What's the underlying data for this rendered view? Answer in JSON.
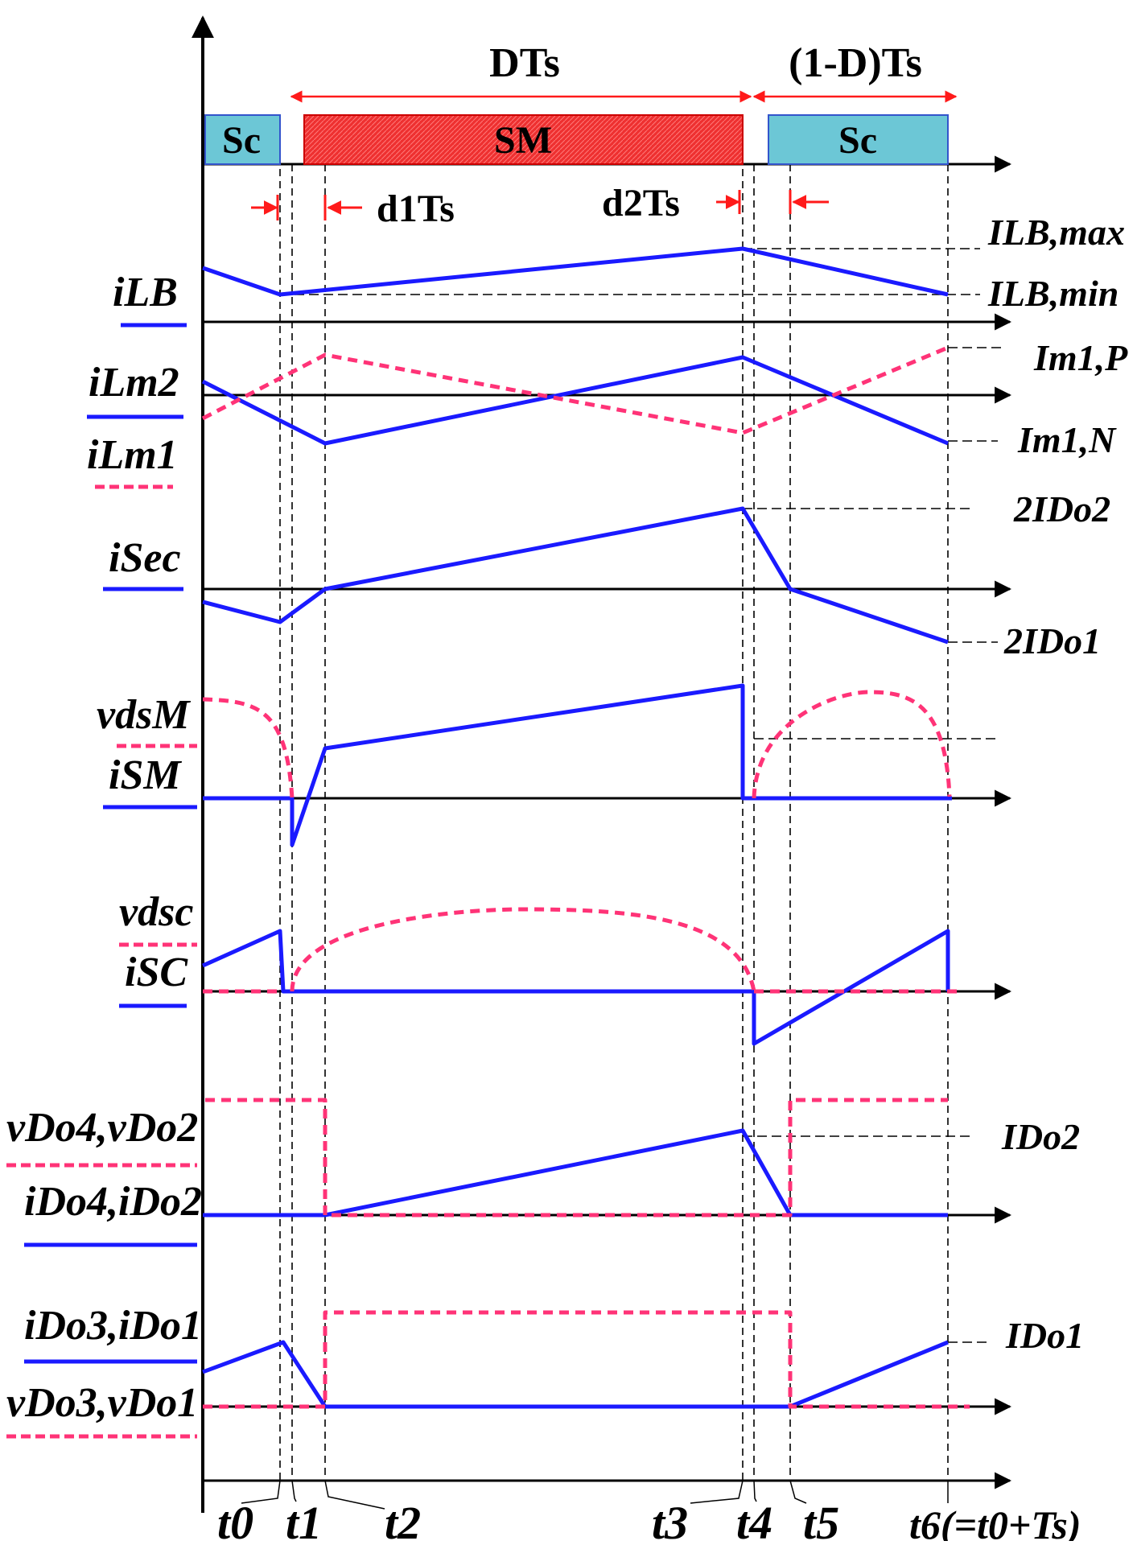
{
  "colors": {
    "blue": "#1a1aff",
    "pink": "#ff3377",
    "red": "#ff1a1a",
    "cyan_fill": "#6cc7d6",
    "red_fill": "#ee3030",
    "black": "#000000"
  },
  "gate_bar": {
    "dts": "DTs",
    "one_minus_d_ts": "(1-D)Ts",
    "sc_left": "Sc",
    "sm": "SM",
    "sc_right": "Sc"
  },
  "deadtimes": {
    "d1ts": "d1Ts",
    "d2ts": "d2Ts"
  },
  "waveform_labels": {
    "ilb": "iLB",
    "ilm2": "iLm2",
    "ilm1": "iLm1",
    "isec": "iSec",
    "vdsm": "vdsM",
    "ism": "iSM",
    "vdsc": "vdsc",
    "isc": "iSC",
    "vdo4_vdo2": "vDo4,vDo2",
    "ido4_ido2": "iDo4,iDo2",
    "ido3_ido1": "iDo3,iDo1",
    "vdo3_vdo1": "vDo3,vDo1"
  },
  "level_labels": {
    "ilb_max": "ILB,max",
    "ilb_min": "ILB,min",
    "im1_p": "Im1,P",
    "im1_n": "Im1,N",
    "two_ido2": "2IDo2",
    "two_ido1": "2IDo1",
    "ido2": "IDo2",
    "ido1": "IDo1"
  },
  "time_labels": {
    "t0": "t0",
    "t1": "t1",
    "t2": "t2",
    "t3": "t3",
    "t4": "t4",
    "t5": "t5",
    "t6": "t6(=t0+Ts)"
  }
}
